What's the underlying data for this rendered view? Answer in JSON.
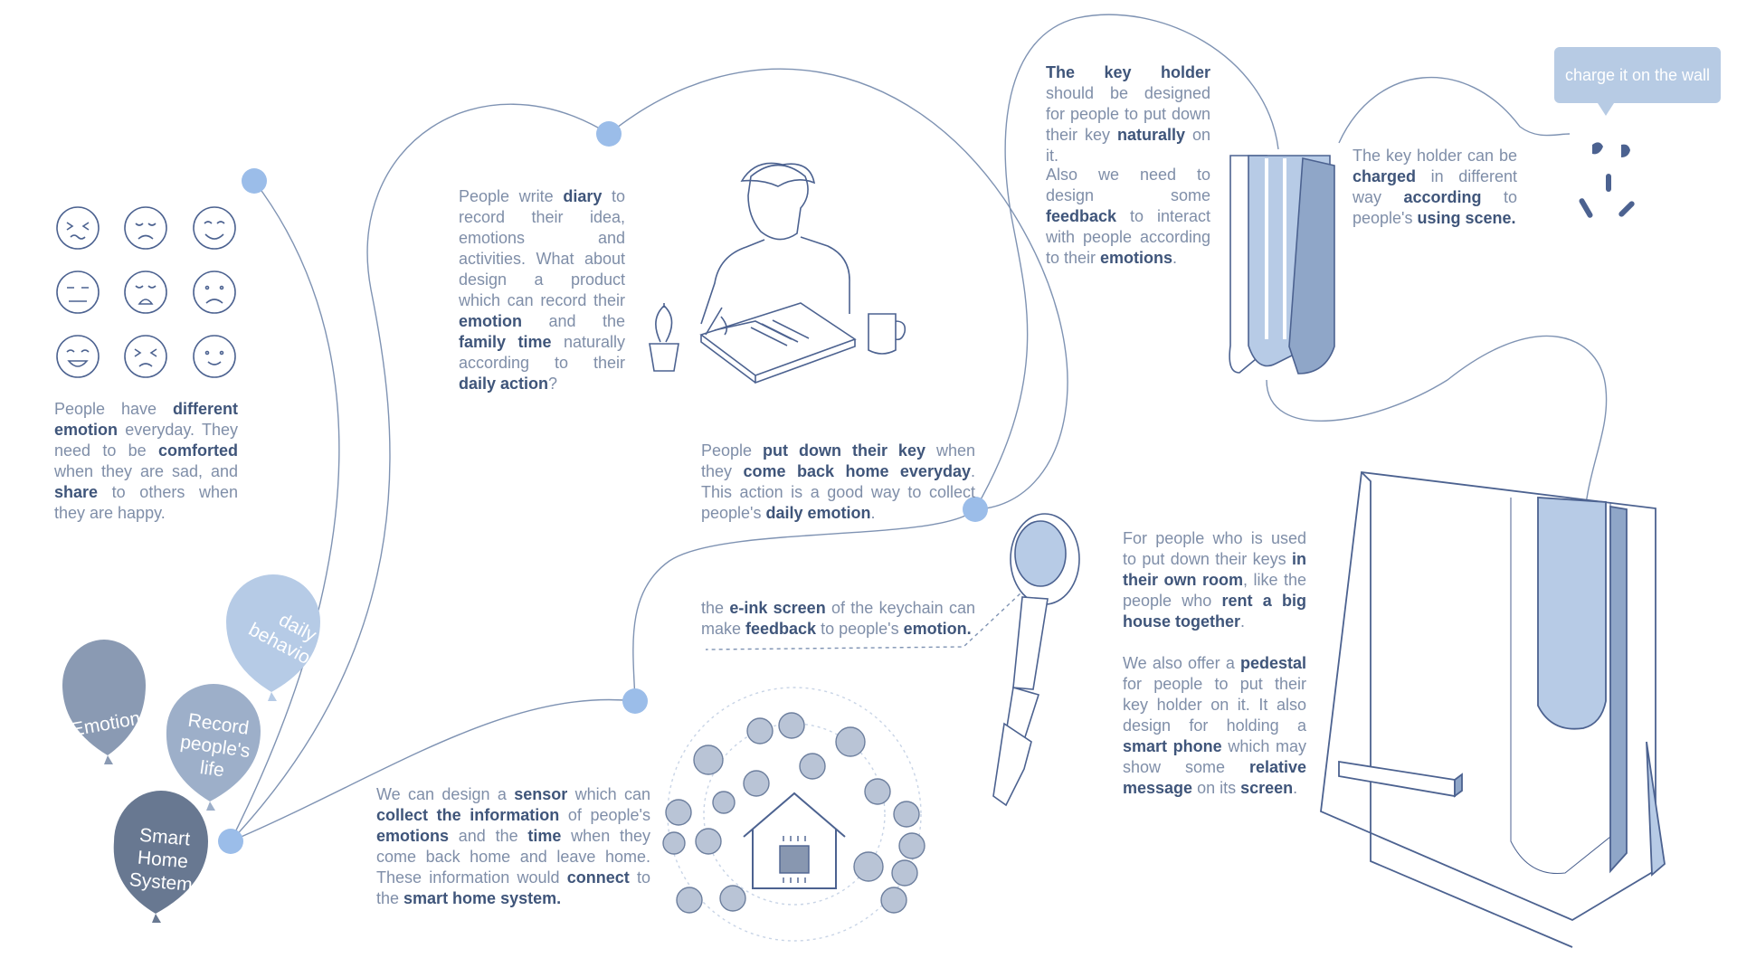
{
  "balloons": {
    "emotion": "Emotion",
    "record": "Record people's life",
    "daily": "daily behaviour",
    "smart": "Smart Home System"
  },
  "bubble": "charge it on the wall",
  "texts": {
    "emotion_p": [
      "People have ",
      "different emotion",
      " everyday. They need to be ",
      "comforted",
      " when they are sad, and ",
      "share",
      " to others when they are happy."
    ],
    "diary_p": [
      "People write ",
      "diary",
      " to record their idea, emotions and activities. What about design a product which can record their ",
      "emotion",
      " and the ",
      "family time",
      " naturally according to their ",
      "daily action",
      "?"
    ],
    "key_p": [
      "People ",
      "put down their key",
      " when they ",
      "come back home everyday",
      ". This action is a good way to collect people's ",
      "daily emotion",
      "."
    ],
    "eink_p": [
      "the ",
      "e-ink screen",
      " of the keychain can make ",
      "feedback",
      " to people's ",
      "emotion."
    ],
    "sensor_p": [
      "We can design a ",
      "sensor",
      " which can ",
      "collect the information",
      " of people's ",
      "emotions",
      " and the ",
      "time",
      " when they come back home and leave home. These information would ",
      "connect",
      " to the ",
      "smart home system."
    ],
    "holder_p1": [
      "",
      "The key holder",
      " should be designed for people to put down their key ",
      "naturally",
      " on it."
    ],
    "holder_p2": [
      "Also we need to design some ",
      "feedback",
      " to interact with people according to their ",
      "emotions",
      "."
    ],
    "charge_p": [
      "The key holder can be ",
      "charged",
      " in different way ",
      "according",
      " to people's ",
      "using scene."
    ],
    "room_p1": [
      "For people who is used to put down their keys ",
      "in their own room",
      ", like the people who ",
      "rent a big house together",
      "."
    ],
    "room_p2": [
      "We also offer a ",
      "pedestal",
      " for people to put their key holder on it. It also design for holding a ",
      "smart phone",
      " which may show some ",
      "relative message",
      " on its ",
      "screen",
      "."
    ]
  },
  "colors": {
    "accent": "#8fb4e6",
    "line": "#7f93b3",
    "dark": "#687891",
    "balloon1": "#8a9ab3",
    "balloon2": "#9dafc9",
    "balloon3": "#b6cbe6"
  }
}
